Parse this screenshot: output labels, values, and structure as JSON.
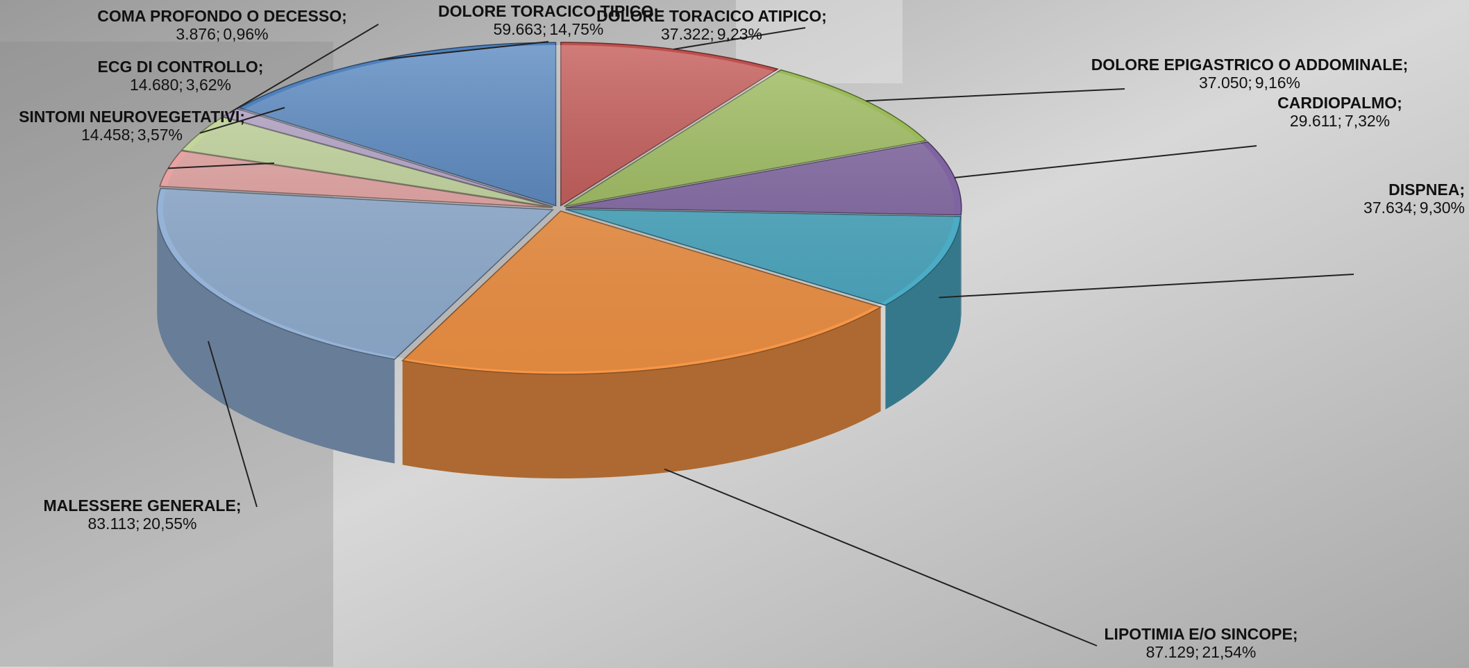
{
  "chart_data": {
    "type": "pie3d",
    "categories": [
      "DOLORE TORACICO ATIPICO;",
      "DOLORE EPIGASTRICO O ADDOMINALE;",
      "CARDIOPALMO;",
      "DISPNEA;",
      "LIPOTIMIA E/O SINCOPE;",
      "MALESSERE GENERALE;",
      "SINTOMI NEUROVEGETATIVI;",
      "ECG DI CONTROLLO;",
      "COMA PROFONDO O DECESSO;",
      "DOLORE TORACICO TIPICO;"
    ],
    "values": [
      37322,
      37050,
      29611,
      37634,
      87129,
      83113,
      14458,
      14680,
      3876,
      59663
    ],
    "value_labels": [
      "37.322;",
      "37.050;",
      "29.611;",
      "37.634;",
      "87.129;",
      "83.113;",
      "14.458;",
      "14.680;",
      "3.876;",
      "59.663;"
    ],
    "percentages": [
      9.23,
      9.16,
      7.32,
      9.3,
      21.54,
      20.55,
      3.57,
      3.62,
      0.96,
      14.75
    ],
    "percentage_labels": [
      "9,23%",
      "9,16%",
      "7,32%",
      "9,30%",
      "21,54%",
      "20,55%",
      "3,57%",
      "3,62%",
      "0,96%",
      "14,75%"
    ],
    "colors": [
      "#c0504d",
      "#9bbb59",
      "#8064a2",
      "#4bacc6",
      "#f79646",
      "#95b3d7",
      "#e6a3a1",
      "#c3d69b",
      "#b3a2c7",
      "#4f81bd"
    ]
  }
}
